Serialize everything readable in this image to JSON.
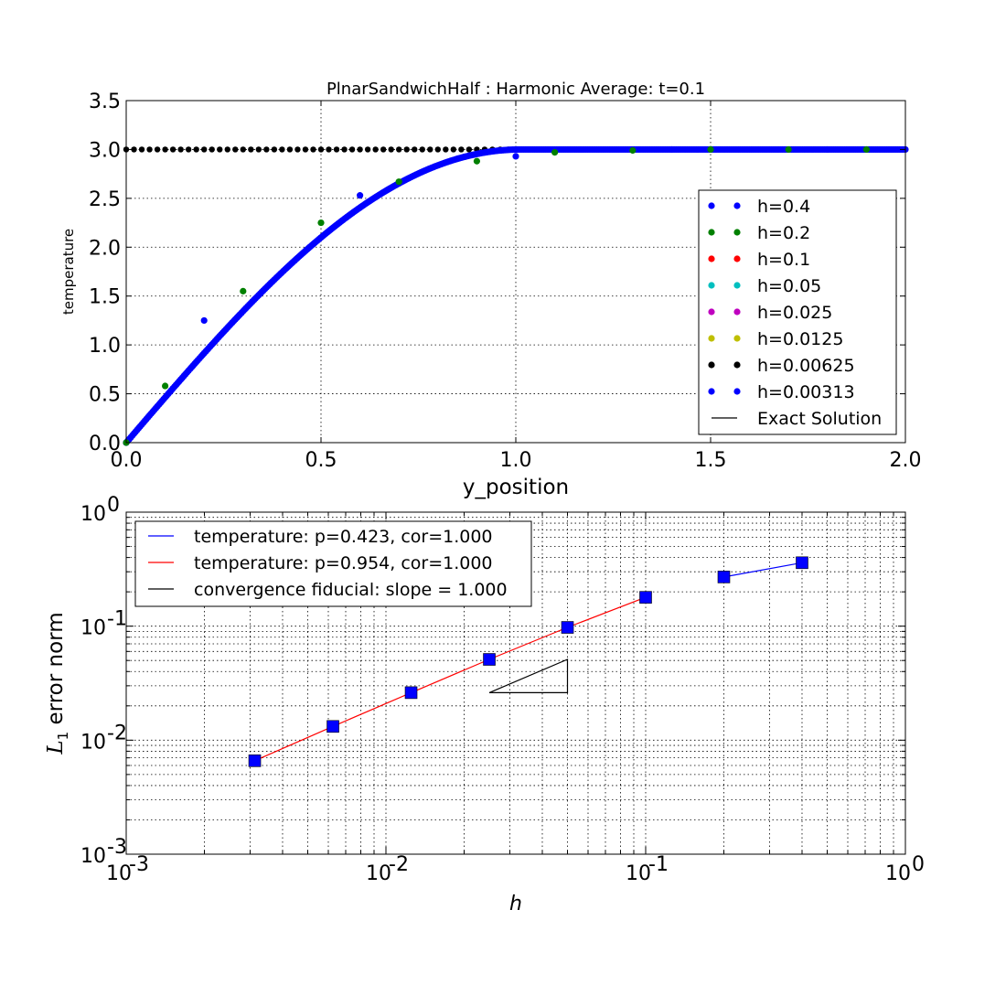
{
  "chart_data": [
    {
      "type": "scatter",
      "title": "PlnarSandwichHalf : Harmonic Average: t=0.1",
      "xlabel": "y_position",
      "ylabel": "temperature",
      "xlim": [
        0,
        2
      ],
      "ylim": [
        0,
        3.5
      ],
      "xticks": [
        "0.0",
        "0.5",
        "1.0",
        "1.5",
        "2.0"
      ],
      "yticks": [
        "0.0",
        "0.5",
        "1.0",
        "1.5",
        "2.0",
        "2.5",
        "3.0",
        "3.5"
      ],
      "grid": true,
      "legend_position": "lower-right",
      "series": [
        {
          "name": "h=0.4",
          "color": "#0000ff",
          "x": [
            0.0,
            0.2,
            0.6,
            1.0,
            1.4,
            1.8,
            2.0
          ],
          "y": [
            0.0,
            1.25,
            2.53,
            2.93,
            3.0,
            3.0,
            3.0
          ]
        },
        {
          "name": "h=0.2",
          "color": "#008000",
          "x": [
            0.0,
            0.1,
            0.3,
            0.5,
            0.7,
            0.9,
            1.1,
            1.3,
            1.5,
            1.7,
            1.9
          ],
          "y": [
            0.0,
            0.58,
            1.55,
            2.25,
            2.67,
            2.88,
            2.97,
            2.99,
            3.0,
            3.0,
            3.0
          ]
        },
        {
          "name": "h=0.1",
          "color": "#ff0000",
          "x": [],
          "y": []
        },
        {
          "name": "h=0.05",
          "color": "#00bfbf",
          "x": [],
          "y": []
        },
        {
          "name": "h=0.025",
          "color": "#bf00bf",
          "x": [],
          "y": []
        },
        {
          "name": "h=0.0125",
          "color": "#bfbf00",
          "x": [],
          "y": []
        },
        {
          "name": "h=0.00625",
          "color": "#000000",
          "x": [],
          "y": []
        },
        {
          "name": "h=0.00313",
          "color": "#0000ff",
          "x": [],
          "y": []
        },
        {
          "name": "Exact Solution",
          "color": "#000000",
          "style": "line",
          "x": [],
          "y": []
        }
      ]
    },
    {
      "type": "line",
      "xlabel": "h",
      "ylabel": "L1 error norm",
      "xscale": "log",
      "yscale": "log",
      "xlim": [
        0.001,
        1
      ],
      "ylim": [
        0.001,
        1
      ],
      "xticks": [
        "10",
        "10",
        "10",
        "10"
      ],
      "xtick_exponents": [
        "-3",
        "-2",
        "-1",
        "0"
      ],
      "yticks": [
        "10",
        "10",
        "10",
        "10"
      ],
      "ytick_exponents": [
        "-3",
        "-2",
        "-1",
        "0"
      ],
      "grid": true,
      "legend_position": "top-left",
      "series": [
        {
          "name": "temperature: p=0.423, cor=1.000",
          "color": "#0000ff",
          "x": [
            0.2,
            0.4
          ],
          "y": [
            0.27,
            0.36
          ]
        },
        {
          "name": "temperature: p=0.954, cor=1.000",
          "color": "#ff0000",
          "x": [
            0.003125,
            0.00625,
            0.0125,
            0.025,
            0.05,
            0.1
          ],
          "y": [
            0.0066,
            0.0132,
            0.0261,
            0.0511,
            0.0975,
            0.179
          ]
        },
        {
          "name": "convergence fiducial: slope = 1.000",
          "color": "#000000",
          "x": [
            0.025,
            0.05,
            0.05,
            0.025
          ],
          "y": [
            0.0261,
            0.0261,
            0.0511,
            0.0261
          ]
        }
      ],
      "markers": {
        "x": [
          0.003125,
          0.00625,
          0.0125,
          0.025,
          0.05,
          0.1,
          0.2,
          0.4
        ],
        "y": [
          0.0066,
          0.0132,
          0.0261,
          0.0511,
          0.0975,
          0.179,
          0.27,
          0.36
        ],
        "color": "#0000ff"
      }
    }
  ]
}
